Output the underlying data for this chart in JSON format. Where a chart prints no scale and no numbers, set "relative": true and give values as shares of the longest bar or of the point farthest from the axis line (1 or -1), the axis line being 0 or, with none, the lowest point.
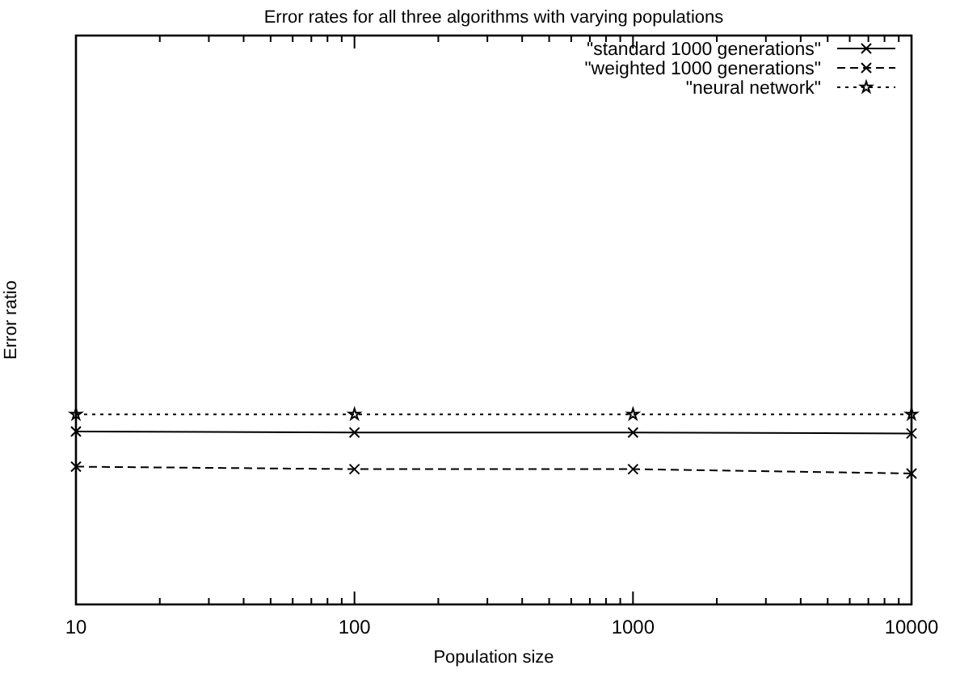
{
  "chart_data": {
    "type": "line",
    "title": "Error rates for all three algorithms with varying populations",
    "xlabel": "Population size",
    "ylabel": "Error ratio",
    "relative": true,
    "log": "x",
    "xlim": [
      10,
      10000
    ],
    "xticks": [
      10,
      100,
      1000,
      10000
    ],
    "x": [
      10,
      100,
      1000,
      10000
    ],
    "legend": "top right",
    "grid": false,
    "series": [
      {
        "name": "\"standard 1000 generations\"",
        "color": "#000000",
        "values": [
          0.91,
          0.905,
          0.905,
          0.9
        ],
        "marker": "cross",
        "line_style": "solid"
      },
      {
        "name": "\"weighted 1000 generations\"",
        "color": "#000000",
        "values": [
          0.725,
          0.712,
          0.712,
          0.689
        ],
        "marker": "cross",
        "line_style": "dashed"
      },
      {
        "name": "\"neural network\"",
        "color": "#000000",
        "values": [
          1,
          1,
          1,
          1
        ],
        "marker": "star",
        "line_style": "dotted"
      }
    ]
  }
}
